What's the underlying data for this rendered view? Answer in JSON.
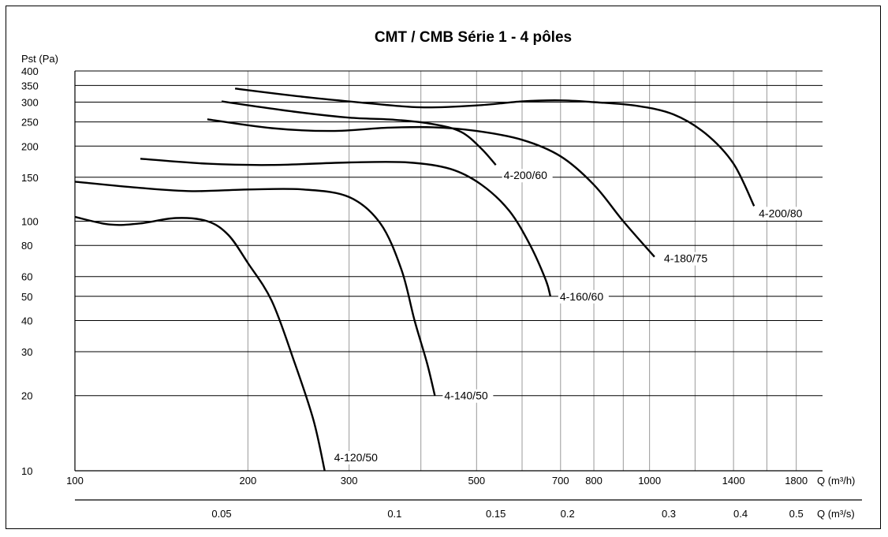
{
  "chart_data": {
    "type": "line",
    "title": "CMT / CMB Série 1 - 4 pôles",
    "ylabel": "Pst (Pa)",
    "xlabel": "Q (m³/h)",
    "x2label": "Q (m³/s)",
    "y_scale": "log",
    "x_scale": "log",
    "ylim": [
      10,
      400
    ],
    "xlim": [
      100,
      2000
    ],
    "y_ticks": [
      10,
      20,
      30,
      40,
      50,
      60,
      80,
      100,
      150,
      200,
      250,
      300,
      350,
      400
    ],
    "x_ticks": [
      100,
      200,
      300,
      500,
      700,
      800,
      1000,
      1400,
      1800
    ],
    "x2_ticks": [
      0.05,
      0.1,
      0.15,
      0.2,
      0.3,
      0.4,
      0.5
    ],
    "grid": true,
    "series": [
      {
        "name": "4-120/50",
        "x": [
          100,
          115,
          130,
          150,
          170,
          185,
          200,
          220,
          240,
          260,
          272
        ],
        "y": [
          104,
          97,
          98,
          103,
          100,
          88,
          68,
          48,
          28,
          16,
          10
        ]
      },
      {
        "name": "4-140/50",
        "x": [
          100,
          130,
          160,
          200,
          250,
          300,
          340,
          370,
          390,
          410,
          423
        ],
        "y": [
          144,
          136,
          132,
          134,
          134,
          125,
          98,
          64,
          40,
          27,
          20
        ]
      },
      {
        "name": "4-160/60",
        "x": [
          130,
          170,
          220,
          300,
          380,
          450,
          510,
          570,
          620,
          660,
          672
        ],
        "y": [
          178,
          170,
          168,
          172,
          172,
          162,
          140,
          110,
          80,
          58,
          50
        ]
      },
      {
        "name": "4-180/75",
        "x": [
          170,
          220,
          280,
          350,
          420,
          500,
          600,
          700,
          800,
          900,
          1020
        ],
        "y": [
          256,
          236,
          230,
          237,
          238,
          230,
          212,
          182,
          140,
          100,
          72
        ]
      },
      {
        "name": "4-200/60",
        "x": [
          180,
          240,
          300,
          360,
          420,
          470,
          510,
          540
        ],
        "y": [
          302,
          275,
          260,
          255,
          245,
          228,
          195,
          168
        ]
      },
      {
        "name": "4-200/80",
        "x": [
          190,
          250,
          320,
          400,
          500,
          600,
          700,
          800,
          950,
          1100,
          1250,
          1400,
          1520
        ],
        "y": [
          340,
          315,
          298,
          286,
          291,
          302,
          305,
          300,
          290,
          268,
          225,
          170,
          115
        ]
      }
    ]
  },
  "labels": {
    "title": "CMT / CMB Série 1 - 4 pôles",
    "ylabel": "Pst (Pa)",
    "xlabel_top": "Q (m³/h)",
    "xlabel_bottom": "Q (m³/s)"
  }
}
